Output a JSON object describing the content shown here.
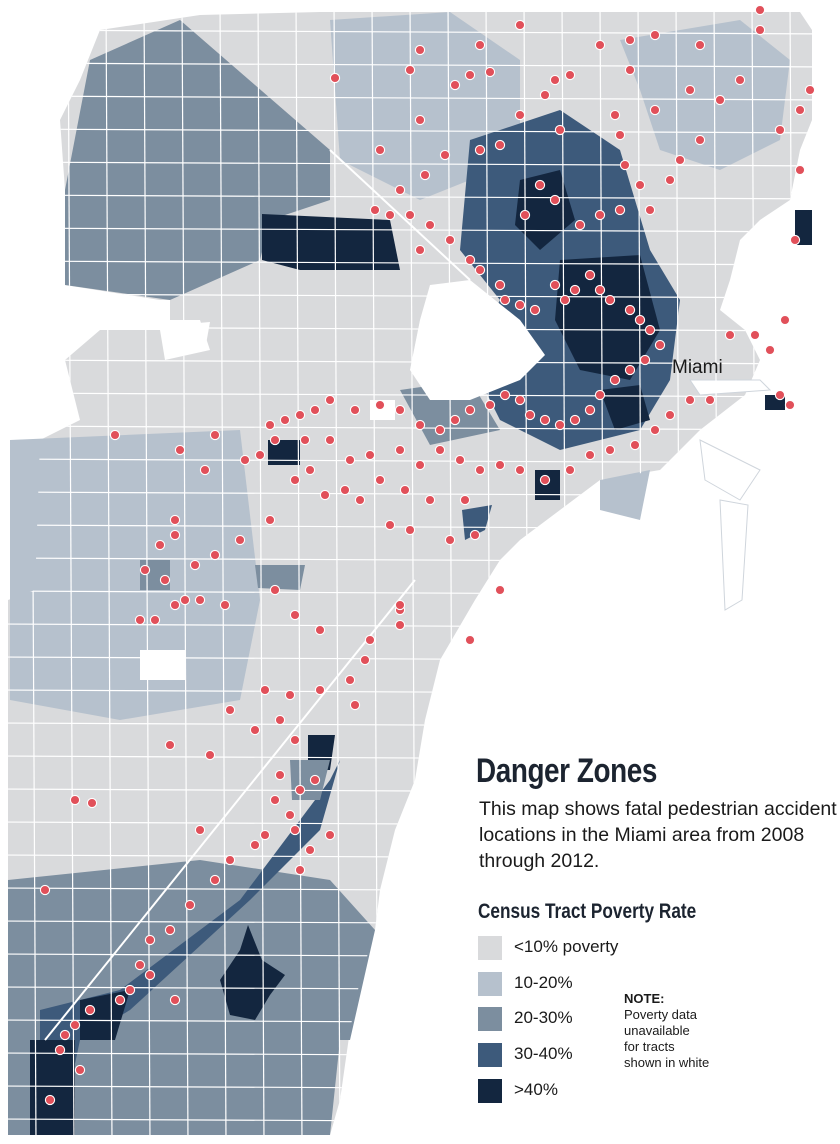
{
  "map": {
    "city_label": "Miami",
    "colors": {
      "water": "#ffffff",
      "tract_border": "#ffffff",
      "accident_dot_fill": "#e1505a",
      "accident_dot_stroke": "#ffffff",
      "poverty_lt10": "#d9dadc",
      "poverty_10_20": "#b6c1cd",
      "poverty_20_30": "#7c8e9f",
      "poverty_30_40": "#3d5a7b",
      "poverty_gt40": "#13263f",
      "no_data": "#ffffff"
    }
  },
  "title": "Danger Zones",
  "subtitle": "This map shows fatal pedestrian accident locations in the Miami area from 2008 through 2012.",
  "legend": {
    "title": "Census Tract Poverty Rate",
    "items": [
      {
        "label": "<10% poverty",
        "color": "#d9dadc"
      },
      {
        "label": "10-20%",
        "color": "#b6c1cd"
      },
      {
        "label": "20-30%",
        "color": "#7c8e9f"
      },
      {
        "label": "30-40%",
        "color": "#3d5a7b"
      },
      {
        "label": ">40%",
        "color": "#13263f"
      }
    ],
    "note": {
      "heading": "NOTE:",
      "text": "Poverty data\nunavailable\nfor tracts\nshown in white"
    }
  }
}
